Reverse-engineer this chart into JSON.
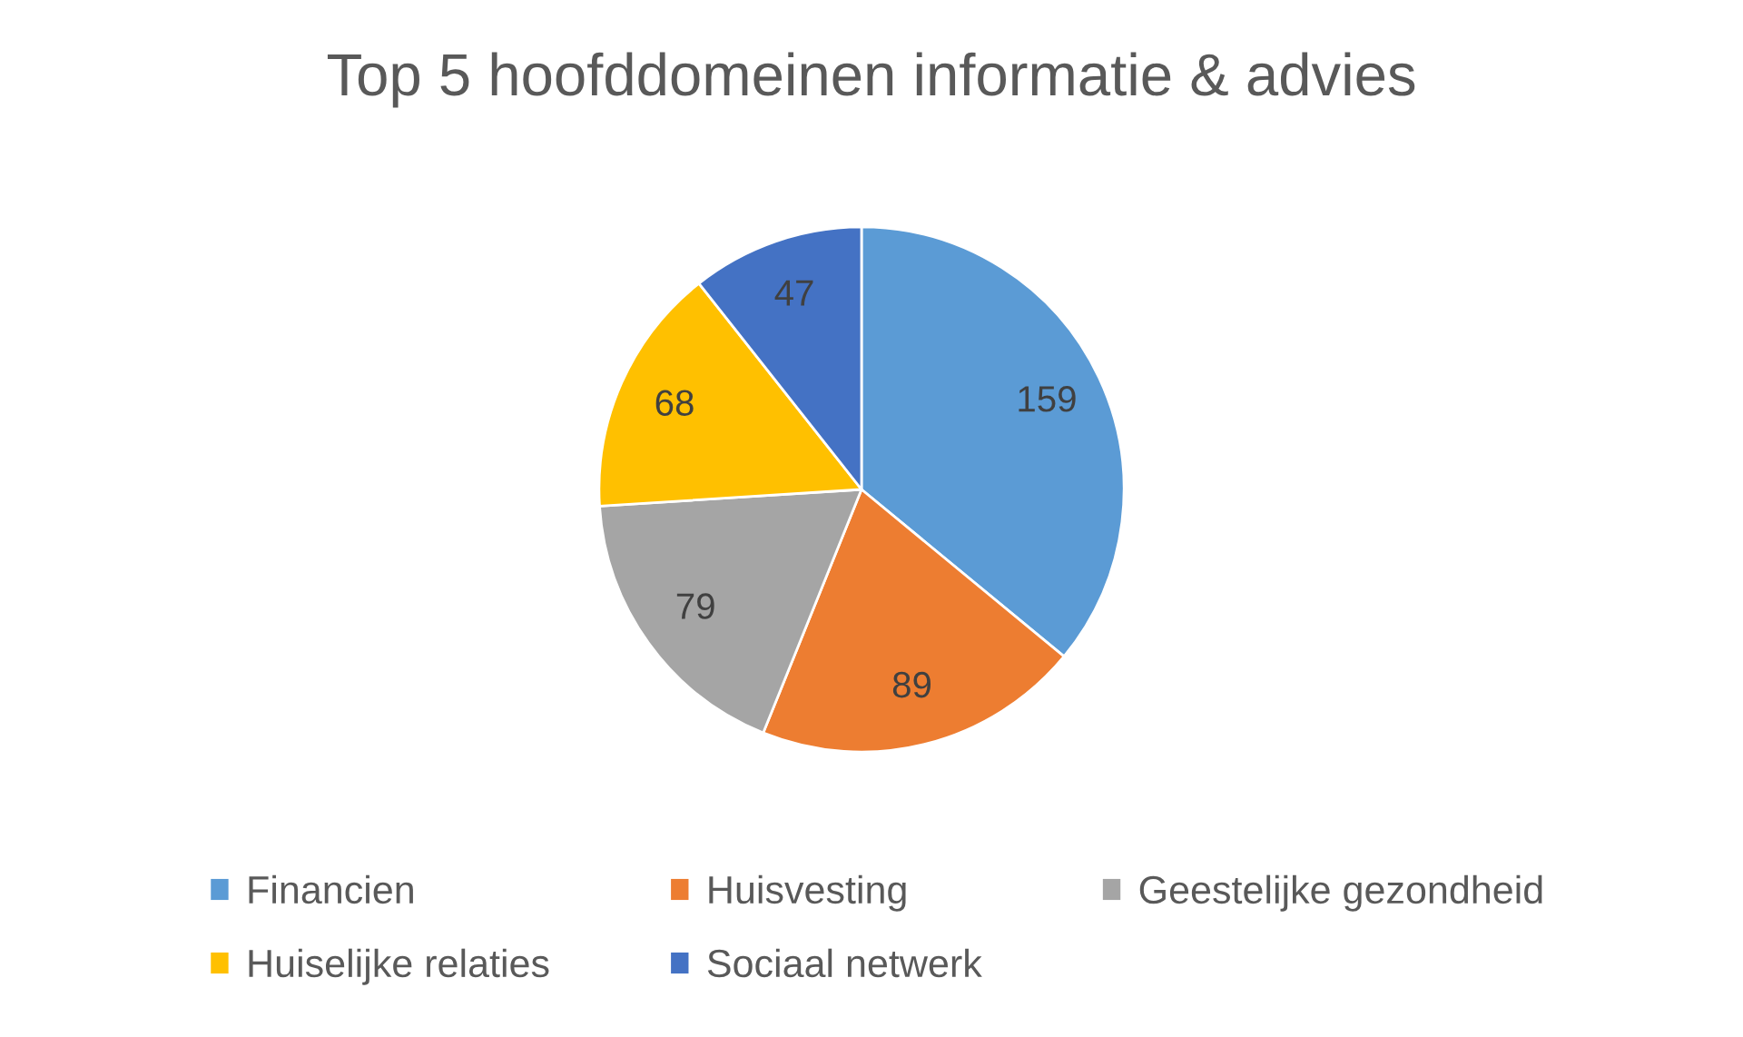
{
  "chart_data": {
    "type": "pie",
    "title": "Top 5 hoofddomeinen informatie & advies",
    "categories": [
      "Financien",
      "Huisvesting",
      "Geestelijke gezondheid",
      "Huiselijke relaties",
      "Sociaal netwerk"
    ],
    "values": [
      159,
      89,
      79,
      68,
      47
    ],
    "colors": [
      "#5b9bd5",
      "#ed7d31",
      "#a5a5a5",
      "#ffc000",
      "#4472c4"
    ],
    "data_labels": true,
    "legend": "bottom"
  }
}
